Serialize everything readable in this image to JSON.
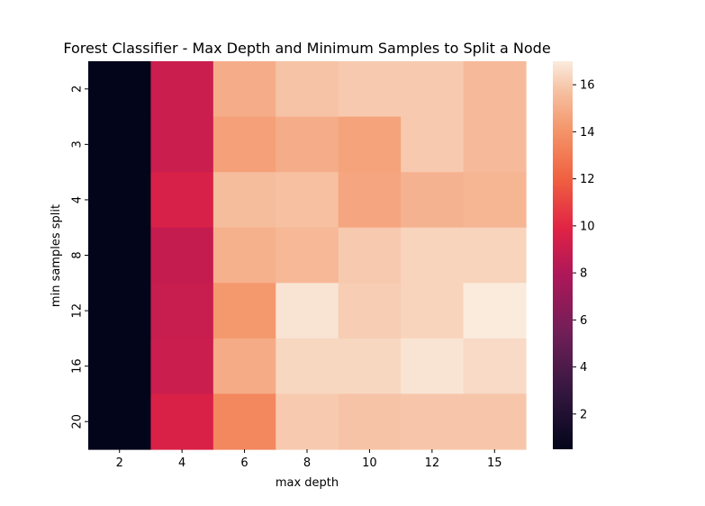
{
  "chart_data": {
    "type": "heatmap",
    "title": "Forest Classifier - Max Depth and Minimum Samples to Split a Node",
    "xlabel": "max depth",
    "ylabel": "min samples split",
    "x_categories": [
      "2",
      "4",
      "6",
      "8",
      "10",
      "12",
      "15"
    ],
    "y_categories": [
      "2",
      "3",
      "4",
      "8",
      "12",
      "16",
      "20"
    ],
    "values": [
      [
        0.5,
        9.0,
        15.0,
        15.8,
        16.0,
        16.0,
        15.5
      ],
      [
        0.5,
        9.0,
        14.5,
        15.0,
        14.6,
        16.0,
        15.5
      ],
      [
        0.5,
        9.5,
        15.6,
        15.7,
        14.7,
        15.2,
        15.3
      ],
      [
        0.5,
        8.8,
        15.1,
        15.4,
        16.0,
        16.3,
        16.3
      ],
      [
        0.5,
        8.9,
        14.2,
        16.8,
        16.1,
        16.3,
        17.0
      ],
      [
        0.5,
        9.0,
        14.9,
        16.4,
        16.4,
        16.8,
        16.5
      ],
      [
        0.5,
        9.6,
        13.5,
        16.0,
        15.8,
        15.9,
        15.9
      ]
    ],
    "colorbar": {
      "vmin": 0.5,
      "vmax": 17.0,
      "ticks": [
        2,
        4,
        6,
        8,
        10,
        12,
        14,
        16
      ],
      "tick_labels": [
        "2",
        "4",
        "6",
        "8",
        "10",
        "12",
        "14",
        "16"
      ],
      "colormap": "rocket"
    }
  }
}
